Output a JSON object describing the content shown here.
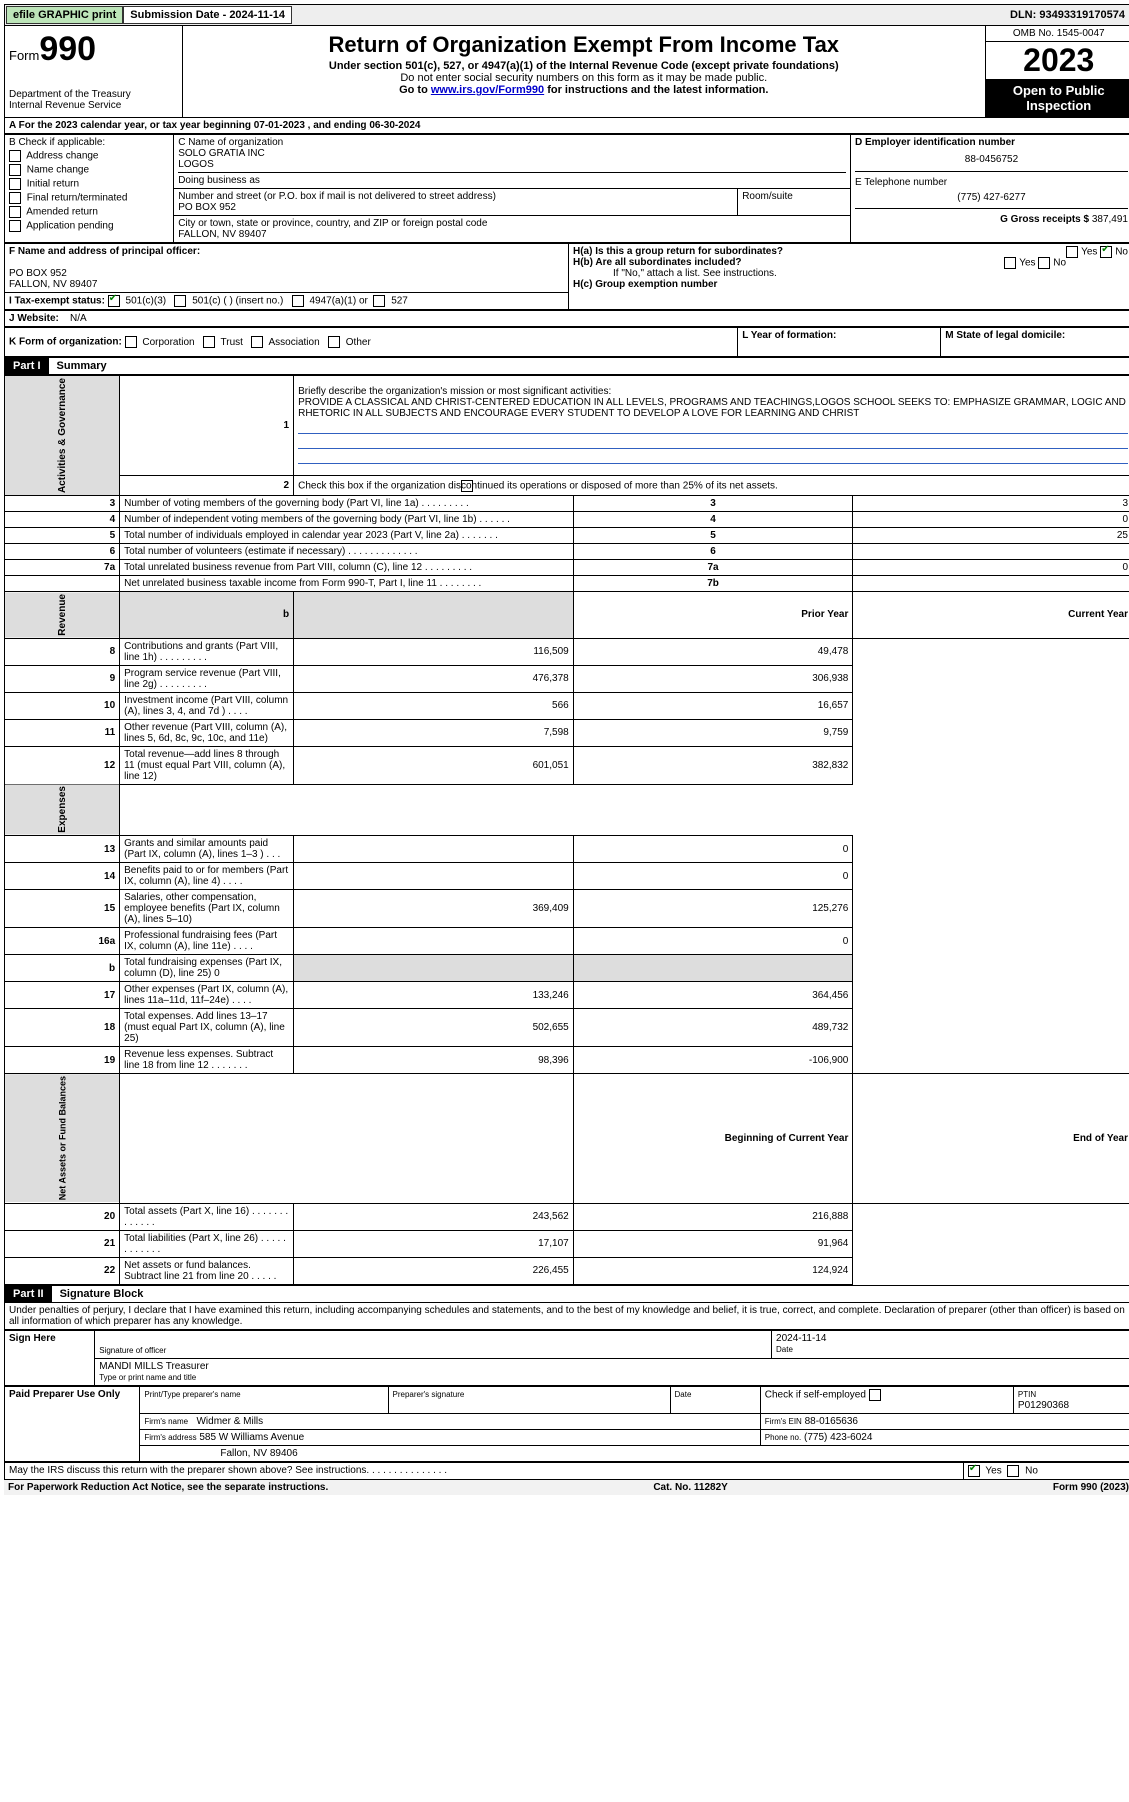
{
  "topbar": {
    "efile": "efile GRAPHIC print",
    "submission": "Submission Date - 2024-11-14",
    "dln": "DLN: 93493319170574"
  },
  "header": {
    "form_prefix": "Form",
    "form_number": "990",
    "dept": "Department of the Treasury",
    "irs": "Internal Revenue Service",
    "title": "Return of Organization Exempt From Income Tax",
    "subtitle": "Under section 501(c), 527, or 4947(a)(1) of the Internal Revenue Code (except private foundations)",
    "note1": "Do not enter social security numbers on this form as it may be made public.",
    "note2_pre": "Go to ",
    "note2_link": "www.irs.gov/Form990",
    "note2_post": " for instructions and the latest information.",
    "omb": "OMB No. 1545-0047",
    "year": "2023",
    "open": "Open to Public Inspection"
  },
  "rowA": "A  For the 2023 calendar year, or tax year beginning 07-01-2023    , and ending 06-30-2024",
  "boxB": {
    "label": "B Check if applicable:",
    "items": [
      "Address change",
      "Name change",
      "Initial return",
      "Final return/terminated",
      "Amended return",
      "Application pending"
    ]
  },
  "boxC": {
    "label": "C Name of organization",
    "name1": "SOLO GRATIA INC",
    "name2": "LOGOS",
    "dba": "Doing business as",
    "addr_label": "Number and street (or P.O. box if mail is not delivered to street address)",
    "room": "Room/suite",
    "addr": "PO BOX 952",
    "city_label": "City or town, state or province, country, and ZIP or foreign postal code",
    "city": "FALLON, NV  89407"
  },
  "boxD": {
    "label": "D Employer identification number",
    "val": "88-0456752"
  },
  "boxE": {
    "label": "E Telephone number",
    "val": "(775) 427-6277"
  },
  "boxG": {
    "label": "G Gross receipts $",
    "val": "387,491"
  },
  "boxF": {
    "label": "F Name and address of principal officer:",
    "line1": "PO BOX 952",
    "line2": "FALLON, NV  89407"
  },
  "boxH": {
    "a": "H(a)  Is this a group return for subordinates?",
    "b": "H(b)  Are all subordinates included?",
    "note": "If \"No,\" attach a list. See instructions.",
    "c": "H(c)  Group exemption number",
    "yes": "Yes",
    "no": "No"
  },
  "boxI": {
    "label": "I    Tax-exempt status:",
    "c3": "501(c)(3)",
    "c": "501(c) (  ) (insert no.)",
    "a1": "4947(a)(1) or",
    "s527": "527"
  },
  "boxJ": {
    "label": "J    Website:",
    "val": "N/A"
  },
  "boxK": {
    "label": "K Form of organization:",
    "items": [
      "Corporation",
      "Trust",
      "Association",
      "Other"
    ]
  },
  "boxL": "L Year of formation:",
  "boxM": "M State of legal domicile:",
  "part1": {
    "header": "Part I",
    "title": "Summary"
  },
  "summary": {
    "tabs": [
      "Activities & Governance",
      "Revenue",
      "Expenses",
      "Net Assets or Fund Balances"
    ],
    "l1": "Briefly describe the organization's mission or most significant activities:",
    "mission": "PROVIDE A CLASSICAL AND CHRIST-CENTERED EDUCATION IN ALL LEVELS, PROGRAMS AND TEACHINGS,LOGOS SCHOOL SEEKS TO: EMPHASIZE GRAMMAR, LOGIC AND RHETORIC IN ALL SUBJECTS AND ENCOURAGE EVERY STUDENT TO DEVELOP A LOVE FOR LEARNING AND CHRIST",
    "l2": "Check this box        if the organization discontinued its operations or disposed of more than 25% of its net assets.",
    "rows_ag": [
      {
        "n": "3",
        "t": "Number of voting members of the governing body (Part VI, line 1a)   .    .    .    .    .    .    .    .    .",
        "lbl": "3",
        "v": "3"
      },
      {
        "n": "4",
        "t": "Number of independent voting members of the governing body (Part VI, line 1b)   .    .    .    .    .    .",
        "lbl": "4",
        "v": "0"
      },
      {
        "n": "5",
        "t": "Total number of individuals employed in calendar year 2023 (Part V, line 2a)   .    .    .    .    .    .    .",
        "lbl": "5",
        "v": "25"
      },
      {
        "n": "6",
        "t": "Total number of volunteers (estimate if necessary)   .    .    .    .    .    .    .    .    .    .    .    .    .",
        "lbl": "6",
        "v": ""
      },
      {
        "n": "7a",
        "t": "Total unrelated business revenue from Part VIII, column (C), line 12   .    .    .    .    .    .    .    .    .",
        "lbl": "7a",
        "v": "0"
      },
      {
        "n": "",
        "t": "Net unrelated business taxable income from Form 990-T, Part I, line 11   .    .    .    .    .    .    .    .",
        "lbl": "7b",
        "v": ""
      }
    ],
    "b_header": "b",
    "py": "Prior Year",
    "cy": "Current Year",
    "rows_rev": [
      {
        "n": "8",
        "t": "Contributions and grants (Part VIII, line 1h)    .    .    .    .    .    .    .    .    .",
        "p": "116,509",
        "c": "49,478"
      },
      {
        "n": "9",
        "t": "Program service revenue (Part VIII, line 2g)   .    .    .    .    .    .    .    .    .",
        "p": "476,378",
        "c": "306,938"
      },
      {
        "n": "10",
        "t": "Investment income (Part VIII, column (A), lines 3, 4, and 7d )   .    .    .    .",
        "p": "566",
        "c": "16,657"
      },
      {
        "n": "11",
        "t": "Other revenue (Part VIII, column (A), lines 5, 6d, 8c, 9c, 10c, and 11e)",
        "p": "7,598",
        "c": "9,759"
      },
      {
        "n": "12",
        "t": "Total revenue—add lines 8 through 11 (must equal Part VIII, column (A), line 12)",
        "p": "601,051",
        "c": "382,832"
      }
    ],
    "rows_exp": [
      {
        "n": "13",
        "t": "Grants and similar amounts paid (Part IX, column (A), lines 1–3 )   .    .    .",
        "p": "",
        "c": "0"
      },
      {
        "n": "14",
        "t": "Benefits paid to or for members (Part IX, column (A), line 4)   .    .    .    .",
        "p": "",
        "c": "0"
      },
      {
        "n": "15",
        "t": "Salaries, other compensation, employee benefits (Part IX, column (A), lines 5–10)",
        "p": "369,409",
        "c": "125,276"
      },
      {
        "n": "16a",
        "t": "Professional fundraising fees (Part IX, column (A), line 11e)   .    .    .    .",
        "p": "",
        "c": "0"
      },
      {
        "n": "b",
        "t": "Total fundraising expenses (Part IX, column (D), line 25) 0",
        "p": "GRAY",
        "c": "GRAY"
      },
      {
        "n": "17",
        "t": "Other expenses (Part IX, column (A), lines 11a–11d, 11f–24e)   .    .    .    .",
        "p": "133,246",
        "c": "364,456"
      },
      {
        "n": "18",
        "t": "Total expenses. Add lines 13–17 (must equal Part IX, column (A), line 25)",
        "p": "502,655",
        "c": "489,732"
      },
      {
        "n": "19",
        "t": "Revenue less expenses. Subtract line 18 from line 12   .    .    .    .    .    .    .",
        "p": "98,396",
        "c": "-106,900"
      }
    ],
    "bcy": "Beginning of Current Year",
    "eoy": "End of Year",
    "rows_net": [
      {
        "n": "20",
        "t": "Total assets (Part X, line 16)   .    .    .    .    .    .    .    .    .    .    .    .    .",
        "p": "243,562",
        "c": "216,888"
      },
      {
        "n": "21",
        "t": "Total liabilities (Part X, line 26)   .    .    .    .    .    .    .    .    .    .    .    .",
        "p": "17,107",
        "c": "91,964"
      },
      {
        "n": "22",
        "t": "Net assets or fund balances. Subtract line 21 from line 20   .    .    .    .    .",
        "p": "226,455",
        "c": "124,924"
      }
    ]
  },
  "part2": {
    "header": "Part II",
    "title": "Signature Block",
    "perjury": "Under penalties of perjury, I declare that I have examined this return, including accompanying schedules and statements, and to the best of my knowledge and belief, it is true, correct, and complete. Declaration of preparer (other than officer) is based on all information of which preparer has any knowledge."
  },
  "sign": {
    "here": "Sign Here",
    "sig_officer": "Signature of officer",
    "date": "Date",
    "date_val": "2024-11-14",
    "name": "MANDI MILLS  Treasurer",
    "name_label": "Type or print name and title"
  },
  "paid": {
    "label": "Paid Preparer Use Only",
    "pt_name": "Print/Type preparer's name",
    "pt_sig": "Preparer's signature",
    "pt_date": "Date",
    "check": "Check         if self-employed",
    "ptin_lbl": "PTIN",
    "ptin": "P01290368",
    "firm_name_lbl": "Firm's name",
    "firm_name": "Widmer & Mills",
    "firm_ein_lbl": "Firm's EIN",
    "firm_ein": "88-0165636",
    "firm_addr_lbl": "Firm's address",
    "firm_addr1": "585 W Williams Avenue",
    "firm_addr2": "Fallon, NV  89406",
    "phone_lbl": "Phone no.",
    "phone": "(775) 423-6024"
  },
  "discuss": "May the IRS discuss this return with the preparer shown above? See instructions.   .    .    .    .    .    .    .    .    .    .    .    .    .    .",
  "footer": {
    "left": "For Paperwork Reduction Act Notice, see the separate instructions.",
    "mid": "Cat. No. 11282Y",
    "right": "Form 990 (2023)"
  }
}
